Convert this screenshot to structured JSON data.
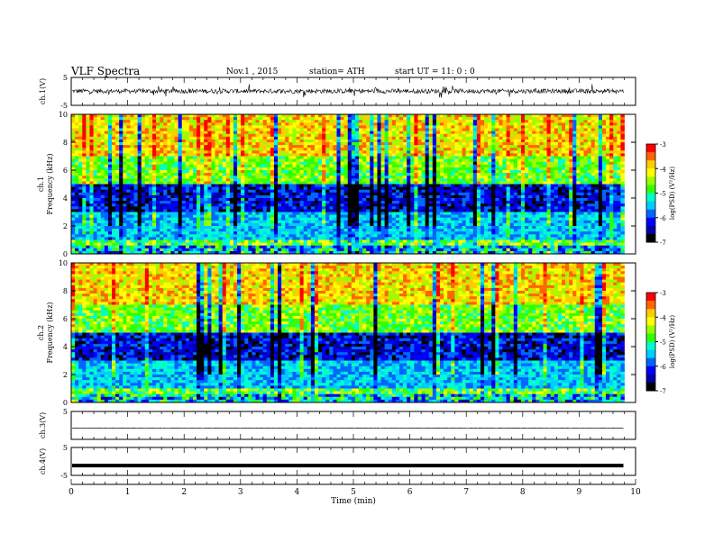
{
  "header": {
    "title": "VLF Spectra",
    "date": "Nov.1 , 2015",
    "station": "station= ATH",
    "start": "start UT = 11: 0 : 0"
  },
  "colors": {
    "colormap": [
      "#000000",
      "#0000aa",
      "#0000ff",
      "#0066ff",
      "#00ccff",
      "#00ffcc",
      "#33ff00",
      "#99ff00",
      "#ffff00",
      "#ffcc00",
      "#ff6600",
      "#ff0000",
      "#ffffff"
    ],
    "trace": "#000000"
  },
  "chart_data": [
    {
      "type": "line",
      "panel": "ch.1 waveform",
      "ylabel": "ch.1(V)",
      "ylim": [
        -5,
        5
      ],
      "yticks": [
        "5",
        "-5"
      ],
      "trace": "noisy waveform between about -2 and 2 V with spikes"
    },
    {
      "type": "heatmap",
      "panel": "ch.1 spectrogram",
      "ylabel_channel": "ch.1",
      "ylabel": "Frequency (kHz)",
      "ylim": [
        0,
        10
      ],
      "yticks": [
        "0",
        "2",
        "4",
        "6",
        "8",
        "10"
      ],
      "colorbar": {
        "label": "log(PSD) (V²/Hz)",
        "range": [
          -7,
          -3
        ],
        "ticks": [
          "-3",
          "-4",
          "-5",
          "-6",
          "-7"
        ]
      }
    },
    {
      "type": "heatmap",
      "panel": "ch.2 spectrogram",
      "ylabel_channel": "ch.2",
      "ylabel": "Frequency (kHz)",
      "ylim": [
        0,
        10
      ],
      "yticks": [
        "0",
        "2",
        "4",
        "6",
        "8",
        "10"
      ],
      "colorbar": {
        "label": "log(PSD) (V²/Hz)",
        "range": [
          -7,
          -3
        ],
        "ticks": [
          "-3",
          "-4",
          "-5",
          "-6",
          "-7"
        ]
      }
    },
    {
      "type": "line",
      "panel": "ch.3 waveform",
      "ylabel": "ch.3(V)",
      "ylim": [
        -5,
        5
      ],
      "yticks": [
        "5"
      ],
      "trace": "near-flat line at about -1 V"
    },
    {
      "type": "line",
      "panel": "ch.4 waveform",
      "ylabel": "ch.4(V)",
      "ylim": [
        -5,
        5
      ],
      "yticks": [
        "5",
        "-5"
      ],
      "trace": "thick flat line at about -1.5 V"
    }
  ],
  "time_axis": {
    "xlabel": "Time (min)",
    "xlim": [
      0,
      10
    ],
    "ticks": [
      "0",
      "1",
      "2",
      "3",
      "4",
      "5",
      "6",
      "7",
      "8",
      "9",
      "10"
    ],
    "data_end": 9.8
  }
}
